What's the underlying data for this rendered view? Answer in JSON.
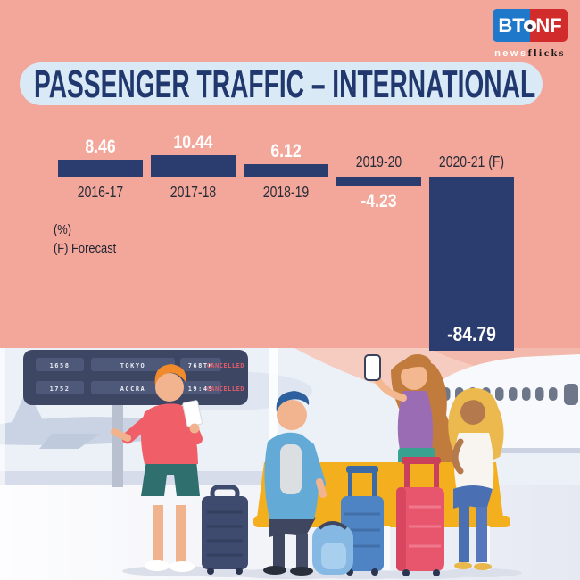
{
  "brand": {
    "bt": "BT",
    "nf": "NF",
    "news": "news",
    "flicks": "flicks"
  },
  "header": {
    "title": "PASSENGER TRAFFIC – INTERNATIONAL"
  },
  "chart_data": {
    "type": "bar",
    "title": "PASSENGER TRAFFIC – INTERNATIONAL",
    "unit_note": "(%)",
    "forecast_note": "(F) Forecast",
    "categories": [
      "2016-17",
      "2017-18",
      "2018-19",
      "2019-20",
      "2020-21 (F)"
    ],
    "values": [
      8.46,
      10.44,
      6.12,
      -4.23,
      -84.79
    ],
    "bars": [
      {
        "category": "2016-17",
        "value": 8.46,
        "value_label": "8.46"
      },
      {
        "category": "2017-18",
        "value": 10.44,
        "value_label": "10.44"
      },
      {
        "category": "2018-19",
        "value": 6.12,
        "value_label": "6.12"
      },
      {
        "category": "2019-20",
        "value": -4.23,
        "value_label": "-4.23"
      },
      {
        "category": "2020-21 (F)",
        "value": -84.79,
        "value_label": "-84.79"
      }
    ],
    "ylabel": "(%)",
    "legend": "none",
    "grid": false,
    "colors": {
      "bar": "#2B3C6E",
      "value_label": "#FFFFFF",
      "category_label": "#262B38",
      "background": "#F3A79A",
      "title_band": "#D9E9F5",
      "title_text": "#21386E"
    }
  },
  "illustration": {
    "board": {
      "rows": [
        {
          "flight": "1658",
          "city": "TOKYO",
          "time": "768TH",
          "status": "CANCELLED"
        },
        {
          "flight": "1752",
          "city": "ACCRA",
          "time": "19:45",
          "status": "CANCELLED"
        }
      ]
    }
  }
}
